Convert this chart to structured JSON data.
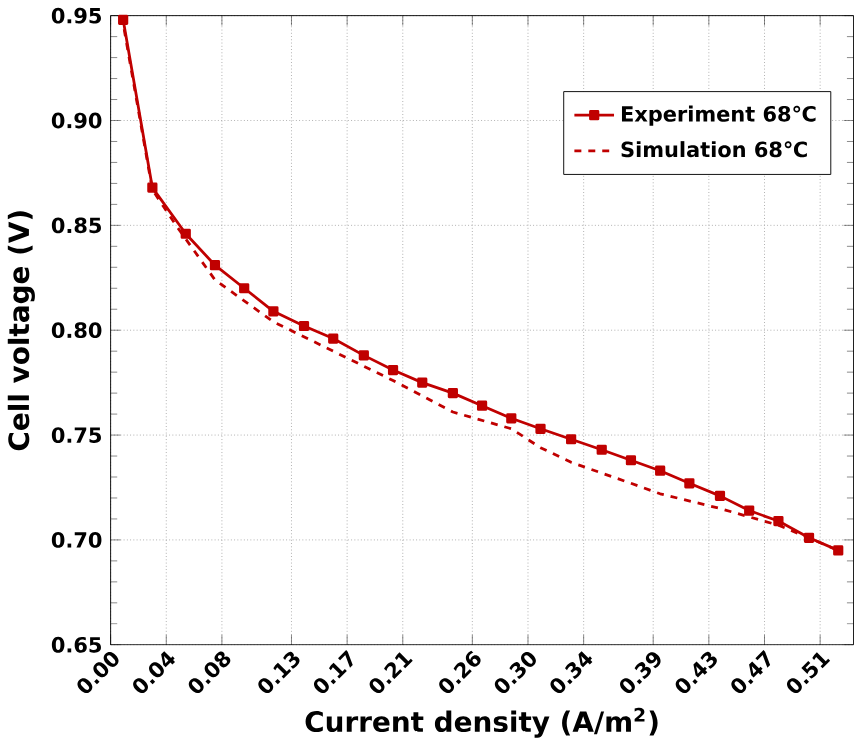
{
  "chart_data": {
    "type": "line",
    "xlabel": "Current density (A/m$^{2}$)",
    "ylabel": "Cell voltage (V)",
    "xlim": [
      0,
      0.534
    ],
    "ylim": [
      0.65,
      0.95
    ],
    "xticks": [
      {
        "value": 0,
        "label": "0.00"
      },
      {
        "value": 0.04,
        "label": "0.04"
      },
      {
        "value": 0.08,
        "label": "0.08"
      },
      {
        "value": 0.13,
        "label": "0.13"
      },
      {
        "value": 0.17,
        "label": "0.17"
      },
      {
        "value": 0.21,
        "label": "0.21"
      },
      {
        "value": 0.26,
        "label": "0.26"
      },
      {
        "value": 0.3,
        "label": "0.30"
      },
      {
        "value": 0.34,
        "label": "0.34"
      },
      {
        "value": 0.39,
        "label": "0.39"
      },
      {
        "value": 0.43,
        "label": "0.43"
      },
      {
        "value": 0.47,
        "label": "0.47"
      },
      {
        "value": 0.51,
        "label": "0.51"
      }
    ],
    "yticks": [
      {
        "value": 0.65,
        "label": "0.65"
      },
      {
        "value": 0.7,
        "label": "0.70"
      },
      {
        "value": 0.75,
        "label": "0.75"
      },
      {
        "value": 0.8,
        "label": "0.80"
      },
      {
        "value": 0.85,
        "label": "0.85"
      },
      {
        "value": 0.9,
        "label": "0.90"
      },
      {
        "value": 0.95,
        "label": "0.95"
      }
    ],
    "grid": true,
    "legend": "top right",
    "series": [
      {
        "name": "Experiment 68℃",
        "color": "#c00000",
        "marker": "square",
        "line_style": "solid",
        "x": [
          0.009,
          0.03,
          0.054,
          0.075,
          0.096,
          0.117,
          0.139,
          0.16,
          0.182,
          0.203,
          0.224,
          0.246,
          0.267,
          0.288,
          0.309,
          0.331,
          0.353,
          0.374,
          0.395,
          0.416,
          0.438,
          0.459,
          0.48,
          0.502,
          0.523
        ],
        "values": [
          0.948,
          0.868,
          0.846,
          0.831,
          0.82,
          0.809,
          0.802,
          0.796,
          0.788,
          0.781,
          0.775,
          0.77,
          0.764,
          0.758,
          0.753,
          0.748,
          0.743,
          0.738,
          0.733,
          0.727,
          0.721,
          0.714,
          0.709,
          0.701,
          0.695
        ]
      },
      {
        "name": "Simulation 68℃",
        "color": "#c00000",
        "marker": "none",
        "line_style": "dashed",
        "x": [
          0.008,
          0.03,
          0.047,
          0.075,
          0.117,
          0.16,
          0.203,
          0.246,
          0.288,
          0.309,
          0.331,
          0.374,
          0.395,
          0.438,
          0.48,
          0.502,
          0.523
        ],
        "values": [
          0.95,
          0.867,
          0.85,
          0.824,
          0.804,
          0.79,
          0.776,
          0.761,
          0.753,
          0.744,
          0.737,
          0.727,
          0.722,
          0.715,
          0.707,
          0.701,
          0.695
        ]
      }
    ]
  }
}
